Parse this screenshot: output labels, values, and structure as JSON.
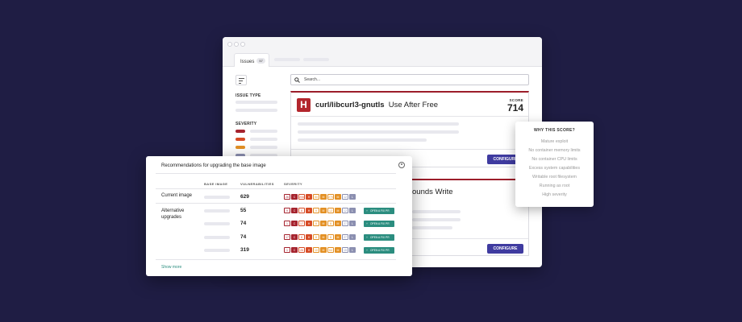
{
  "window": {
    "tab_label": "Issues",
    "tab_count": "57",
    "search_placeholder": "Search...",
    "sidebar": {
      "issue_type_label": "ISSUE TYPE",
      "severity_label": "SEVERITY",
      "severity_colors": [
        "#a5232e",
        "#d64b25",
        "#e39024",
        "#8b8fb0"
      ]
    },
    "card1": {
      "badge": "H",
      "package": "curl/libcurl3-gnutls",
      "issue": "Use After Free",
      "score_label": "SCORE",
      "score": "714",
      "button": "CONFIGURE"
    },
    "card2": {
      "issue_partial": "ounds Write",
      "score_partial": "6",
      "button": "CONFIGURE"
    }
  },
  "popup": {
    "title": "WHY THIS SCORE?",
    "items": [
      "Mature exploit",
      "No container memory limits",
      "No container CPU limits",
      "Excess system capabilities",
      "Writable root filesystem",
      "Running as root",
      "High severity"
    ]
  },
  "recommendations": {
    "title": "Recommendations for upgrading the base image",
    "columns": {
      "base_image": "BASE IMAGE",
      "vulnerabilities": "VULNERABILITIES",
      "severity": "SEVERITY"
    },
    "current_label": "Current image",
    "alternative_label": "Alternative upgrades",
    "fix_button": "OPEN A FIX PR",
    "show_more": "Show more",
    "rows": [
      {
        "vulns": "629",
        "chips": [
          "26",
          "C",
          "206",
          "H",
          "50",
          "M",
          "270",
          "M",
          "12",
          "L"
        ],
        "fix": false
      },
      {
        "vulns": "55",
        "chips": [
          "9",
          "C",
          "8",
          "H",
          "9",
          "M",
          "12",
          "M",
          "12",
          "L"
        ],
        "fix": true
      },
      {
        "vulns": "74",
        "chips": [
          "1",
          "C",
          "17",
          "H",
          "8",
          "M",
          "8",
          "M",
          "27",
          "L"
        ],
        "fix": true
      },
      {
        "vulns": "74",
        "chips": [
          "17",
          "C",
          "8",
          "H",
          "8",
          "M",
          "8",
          "M",
          "27",
          "L"
        ],
        "fix": true
      },
      {
        "vulns": "319",
        "chips": [
          "1",
          "C",
          "26",
          "H",
          "10",
          "M",
          "64",
          "M",
          "15",
          "L"
        ],
        "fix": true
      }
    ],
    "chip_colors": {
      "critical": "#a5232e",
      "high": "#d64b25",
      "medium": "#e39024",
      "low": "#8b8fb0"
    }
  }
}
